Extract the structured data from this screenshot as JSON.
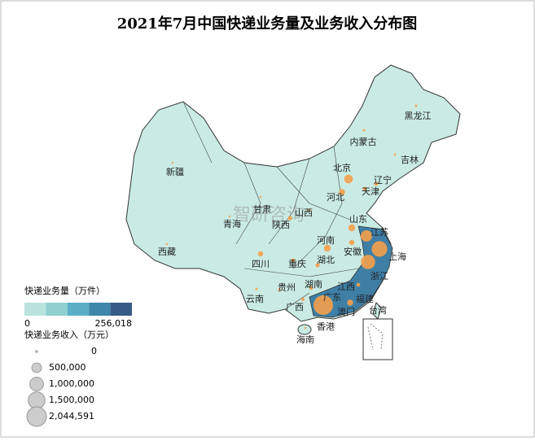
{
  "title": "2021年7月中国快递业务量及业务收入分布图",
  "watermark": "智研咨询",
  "color_legend": {
    "title": "快递业务量（万件）",
    "min": "0",
    "max": "256,018",
    "colors": [
      "#b9e3dc",
      "#8ecfcf",
      "#5aafc6",
      "#3f86ab",
      "#375a87"
    ]
  },
  "size_legend": {
    "title": "快递业务收入（万元）",
    "bubble_color": "#f5a04a",
    "ticks": [
      0,
      {
        "value": 500000,
        "label": "500,000"
      },
      {
        "value": 1000000,
        "label": "1,000,000"
      },
      {
        "value": 1500000,
        "label": "1,500,000"
      },
      {
        "value": 2044591,
        "label": "2,044,591"
      }
    ]
  },
  "regions": [
    {
      "name": "黑龙江",
      "revenue": 30000
    },
    {
      "name": "内蒙古",
      "revenue": 30000
    },
    {
      "name": "吉林",
      "revenue": 25000
    },
    {
      "name": "新疆",
      "revenue": 15000
    },
    {
      "name": "北京",
      "revenue": 400000
    },
    {
      "name": "辽宁",
      "revenue": 80000
    },
    {
      "name": "天津",
      "revenue": 80000
    },
    {
      "name": "河北",
      "revenue": 200000
    },
    {
      "name": "青海",
      "revenue": 5000
    },
    {
      "name": "甘肃",
      "revenue": 20000
    },
    {
      "name": "山西",
      "revenue": 40000
    },
    {
      "name": "山东",
      "revenue": 250000
    },
    {
      "name": "陕西",
      "revenue": 100000
    },
    {
      "name": "河南",
      "revenue": 250000
    },
    {
      "name": "江苏",
      "revenue": 700000
    },
    {
      "name": "西藏",
      "revenue": 5000
    },
    {
      "name": "安徽",
      "revenue": 150000
    },
    {
      "name": "上海",
      "revenue": 1300000
    },
    {
      "name": "四川",
      "revenue": 150000
    },
    {
      "name": "重庆",
      "revenue": 80000
    },
    {
      "name": "湖北",
      "revenue": 100000
    },
    {
      "name": "浙江",
      "revenue": 1100000
    },
    {
      "name": "贵州",
      "revenue": 30000
    },
    {
      "name": "湖南",
      "revenue": 80000
    },
    {
      "name": "江西",
      "revenue": 80000
    },
    {
      "name": "云南",
      "revenue": 30000
    },
    {
      "name": "广西",
      "revenue": 60000
    },
    {
      "name": "福建",
      "revenue": 200000
    },
    {
      "name": "广东",
      "revenue": 2044591
    },
    {
      "name": "台湾"
    },
    {
      "name": "澳门"
    },
    {
      "name": "香港"
    },
    {
      "name": "海南",
      "revenue": 20000
    }
  ]
}
